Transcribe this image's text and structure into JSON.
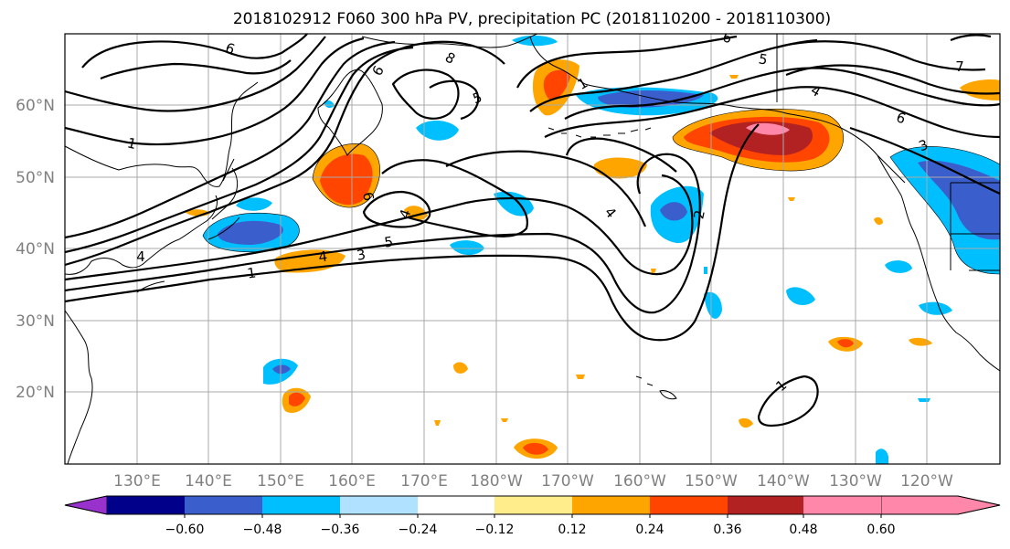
{
  "title": "2018102912 F060 300 hPa PV, precipitation PC (2018110200 - 2018110300)",
  "lat_labels": [
    "60°N",
    "50°N",
    "40°N",
    "30°N",
    "20°N"
  ],
  "lon_labels": [
    "130°E",
    "140°E",
    "150°E",
    "160°E",
    "170°E",
    "180°W",
    "170°W",
    "160°W",
    "150°W",
    "140°W",
    "130°W",
    "120°W"
  ],
  "colorbar": {
    "colors": [
      "#9932cc",
      "#00008b",
      "#3a5fcd",
      "#00bfff",
      "#b0e2ff",
      "#ffffff",
      "#ffec8b",
      "#ffa500",
      "#ff4500",
      "#b22222",
      "#ff88aa"
    ],
    "tick_labels": [
      "−0.60",
      "−0.48",
      "−0.36",
      "−0.24",
      "−0.12",
      "0.12",
      "0.24",
      "0.36",
      "0.48",
      "0.60"
    ]
  },
  "pv_contour_labels": [
    "1",
    "1",
    "1",
    "1",
    "2",
    "3",
    "3",
    "4",
    "4",
    "4",
    "4",
    "4",
    "5",
    "5",
    "5",
    "6",
    "6",
    "6",
    "6",
    "6",
    "7",
    "8"
  ],
  "colors": {
    "grid": "#a9a9a9",
    "tick_label": "#808080"
  }
}
